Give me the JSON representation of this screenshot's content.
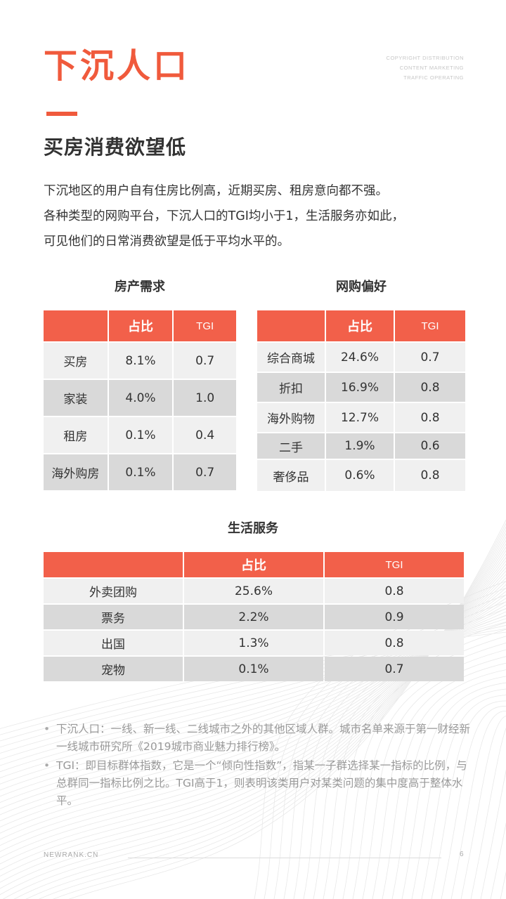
{
  "header": {
    "title": "下沉人口",
    "copyright_lines": [
      "COPYRIGHT DISTRIBUTION",
      "CONTENT MARKETING",
      "TRAFFIC OPERATING"
    ]
  },
  "section": {
    "subtitle": "买房消费欲望低",
    "paragraph_lines": [
      "下沉地区的用户自有住房比例高，近期买房、租房意向都不强。",
      "各种类型的网购平台，下沉人口的TGI均小于1，生活服务亦如此，",
      "可见他们的日常消费欲望是低于平均水平的。"
    ]
  },
  "tables": {
    "housing": {
      "caption": "房产需求",
      "headers": [
        "",
        "占比",
        "TGI"
      ],
      "rows": [
        [
          "买房",
          "8.1%",
          "0.7"
        ],
        [
          "家装",
          "4.0%",
          "1.0"
        ],
        [
          "租房",
          "0.1%",
          "0.4"
        ],
        [
          "海外购房",
          "0.1%",
          "0.7"
        ]
      ]
    },
    "online_shopping": {
      "caption": "网购偏好",
      "headers": [
        "",
        "占比",
        "TGI"
      ],
      "rows": [
        [
          "综合商城",
          "24.6%",
          "0.7"
        ],
        [
          "折扣",
          "16.9%",
          "0.8"
        ],
        [
          "海外购物",
          "12.7%",
          "0.8"
        ],
        [
          "二手",
          "1.9%",
          "0.6"
        ],
        [
          "奢侈品",
          "0.6%",
          "0.8"
        ]
      ]
    },
    "life_services": {
      "caption": "生活服务",
      "headers": [
        "",
        "占比",
        "TGI"
      ],
      "rows": [
        [
          "外卖团购",
          "25.6%",
          "0.8"
        ],
        [
          "票务",
          "2.2%",
          "0.9"
        ],
        [
          "出国",
          "1.3%",
          "0.8"
        ],
        [
          "宠物",
          "0.1%",
          "0.7"
        ]
      ]
    }
  },
  "notes": [
    {
      "bullet": "•",
      "text": "下沉人口：一线、新一线、二线城市之外的其他区域人群。城市名单来源于第一财经新一线城市研究所《2019城市商业魅力排行榜》。"
    },
    {
      "bullet": "•",
      "text": "TGI：即目标群体指数，它是一个“倾向性指数”，指某一子群选择某一指标的比例，与总群同一指标比例之比。TGI高于1，则表明该类用户对某类问题的集中度高于整体水平。"
    }
  ],
  "footer": {
    "site": "NEWRANK.CN",
    "page": "6"
  },
  "watermark_text": "新榜研究院",
  "colors": {
    "accent": "#f05a3c",
    "header_cell": "#f2604a",
    "row_light": "#f0f0f0",
    "row_dark": "#d9d9d9"
  }
}
